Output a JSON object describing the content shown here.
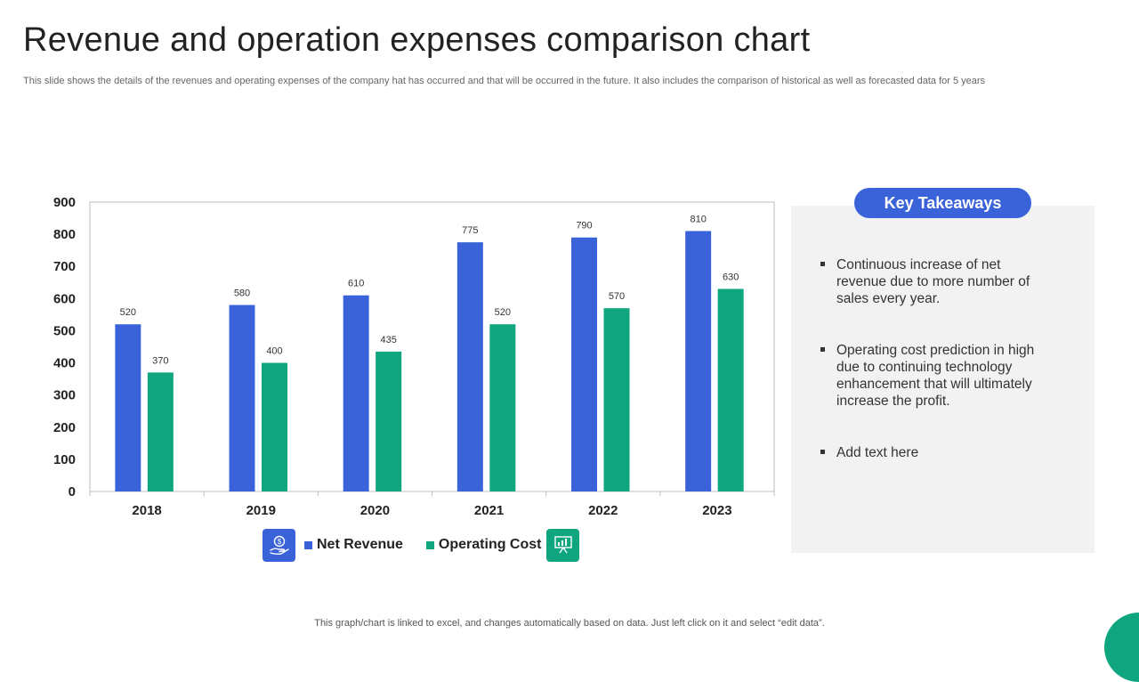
{
  "header": {
    "title": "Revenue and operation expenses comparison chart",
    "subtitle": "This slide shows the details of the revenues and operating expenses of the company hat has occurred and that will be occurred in the future. It also includes the comparison of historical as well as forecasted data for 5 years"
  },
  "chart_data": {
    "type": "bar",
    "title": "",
    "xlabel": "",
    "ylabel": "",
    "categories": [
      "2018",
      "2019",
      "2020",
      "2021",
      "2022",
      "2023"
    ],
    "series": [
      {
        "name": "Net Revenue",
        "values": [
          520,
          580,
          610,
          775,
          790,
          810
        ],
        "color": "#3b63d9"
      },
      {
        "name": "Operating Cost",
        "values": [
          370,
          400,
          435,
          520,
          570,
          630
        ],
        "color": "#0fa57f"
      }
    ],
    "ylim": [
      0,
      900
    ],
    "yticks": [
      0,
      100,
      200,
      300,
      400,
      500,
      600,
      700,
      800,
      900
    ],
    "grid": false,
    "legend_position": "bottom"
  },
  "legend": {
    "revenue_icon": "money-hand-icon",
    "cost_icon": "presentation-chart-icon",
    "icon_colors": {
      "revenue": "#3b63d9",
      "cost": "#0fa57f"
    }
  },
  "takeaways": {
    "heading": "Key Takeaways",
    "items": [
      "Continuous increase of net revenue due to more number of sales  every year.",
      "Operating cost prediction in high due to continuing technology enhancement that will ultimately increase the profit.",
      "Add text here"
    ]
  },
  "footer": {
    "note": "This graph/chart is linked to excel,  and changes automatically based on data. Just left click on it and select “edit data”."
  },
  "colors": {
    "accent_blue": "#3b63d9",
    "accent_green": "#0fa57f",
    "panel_bg": "#f2f2f2"
  }
}
